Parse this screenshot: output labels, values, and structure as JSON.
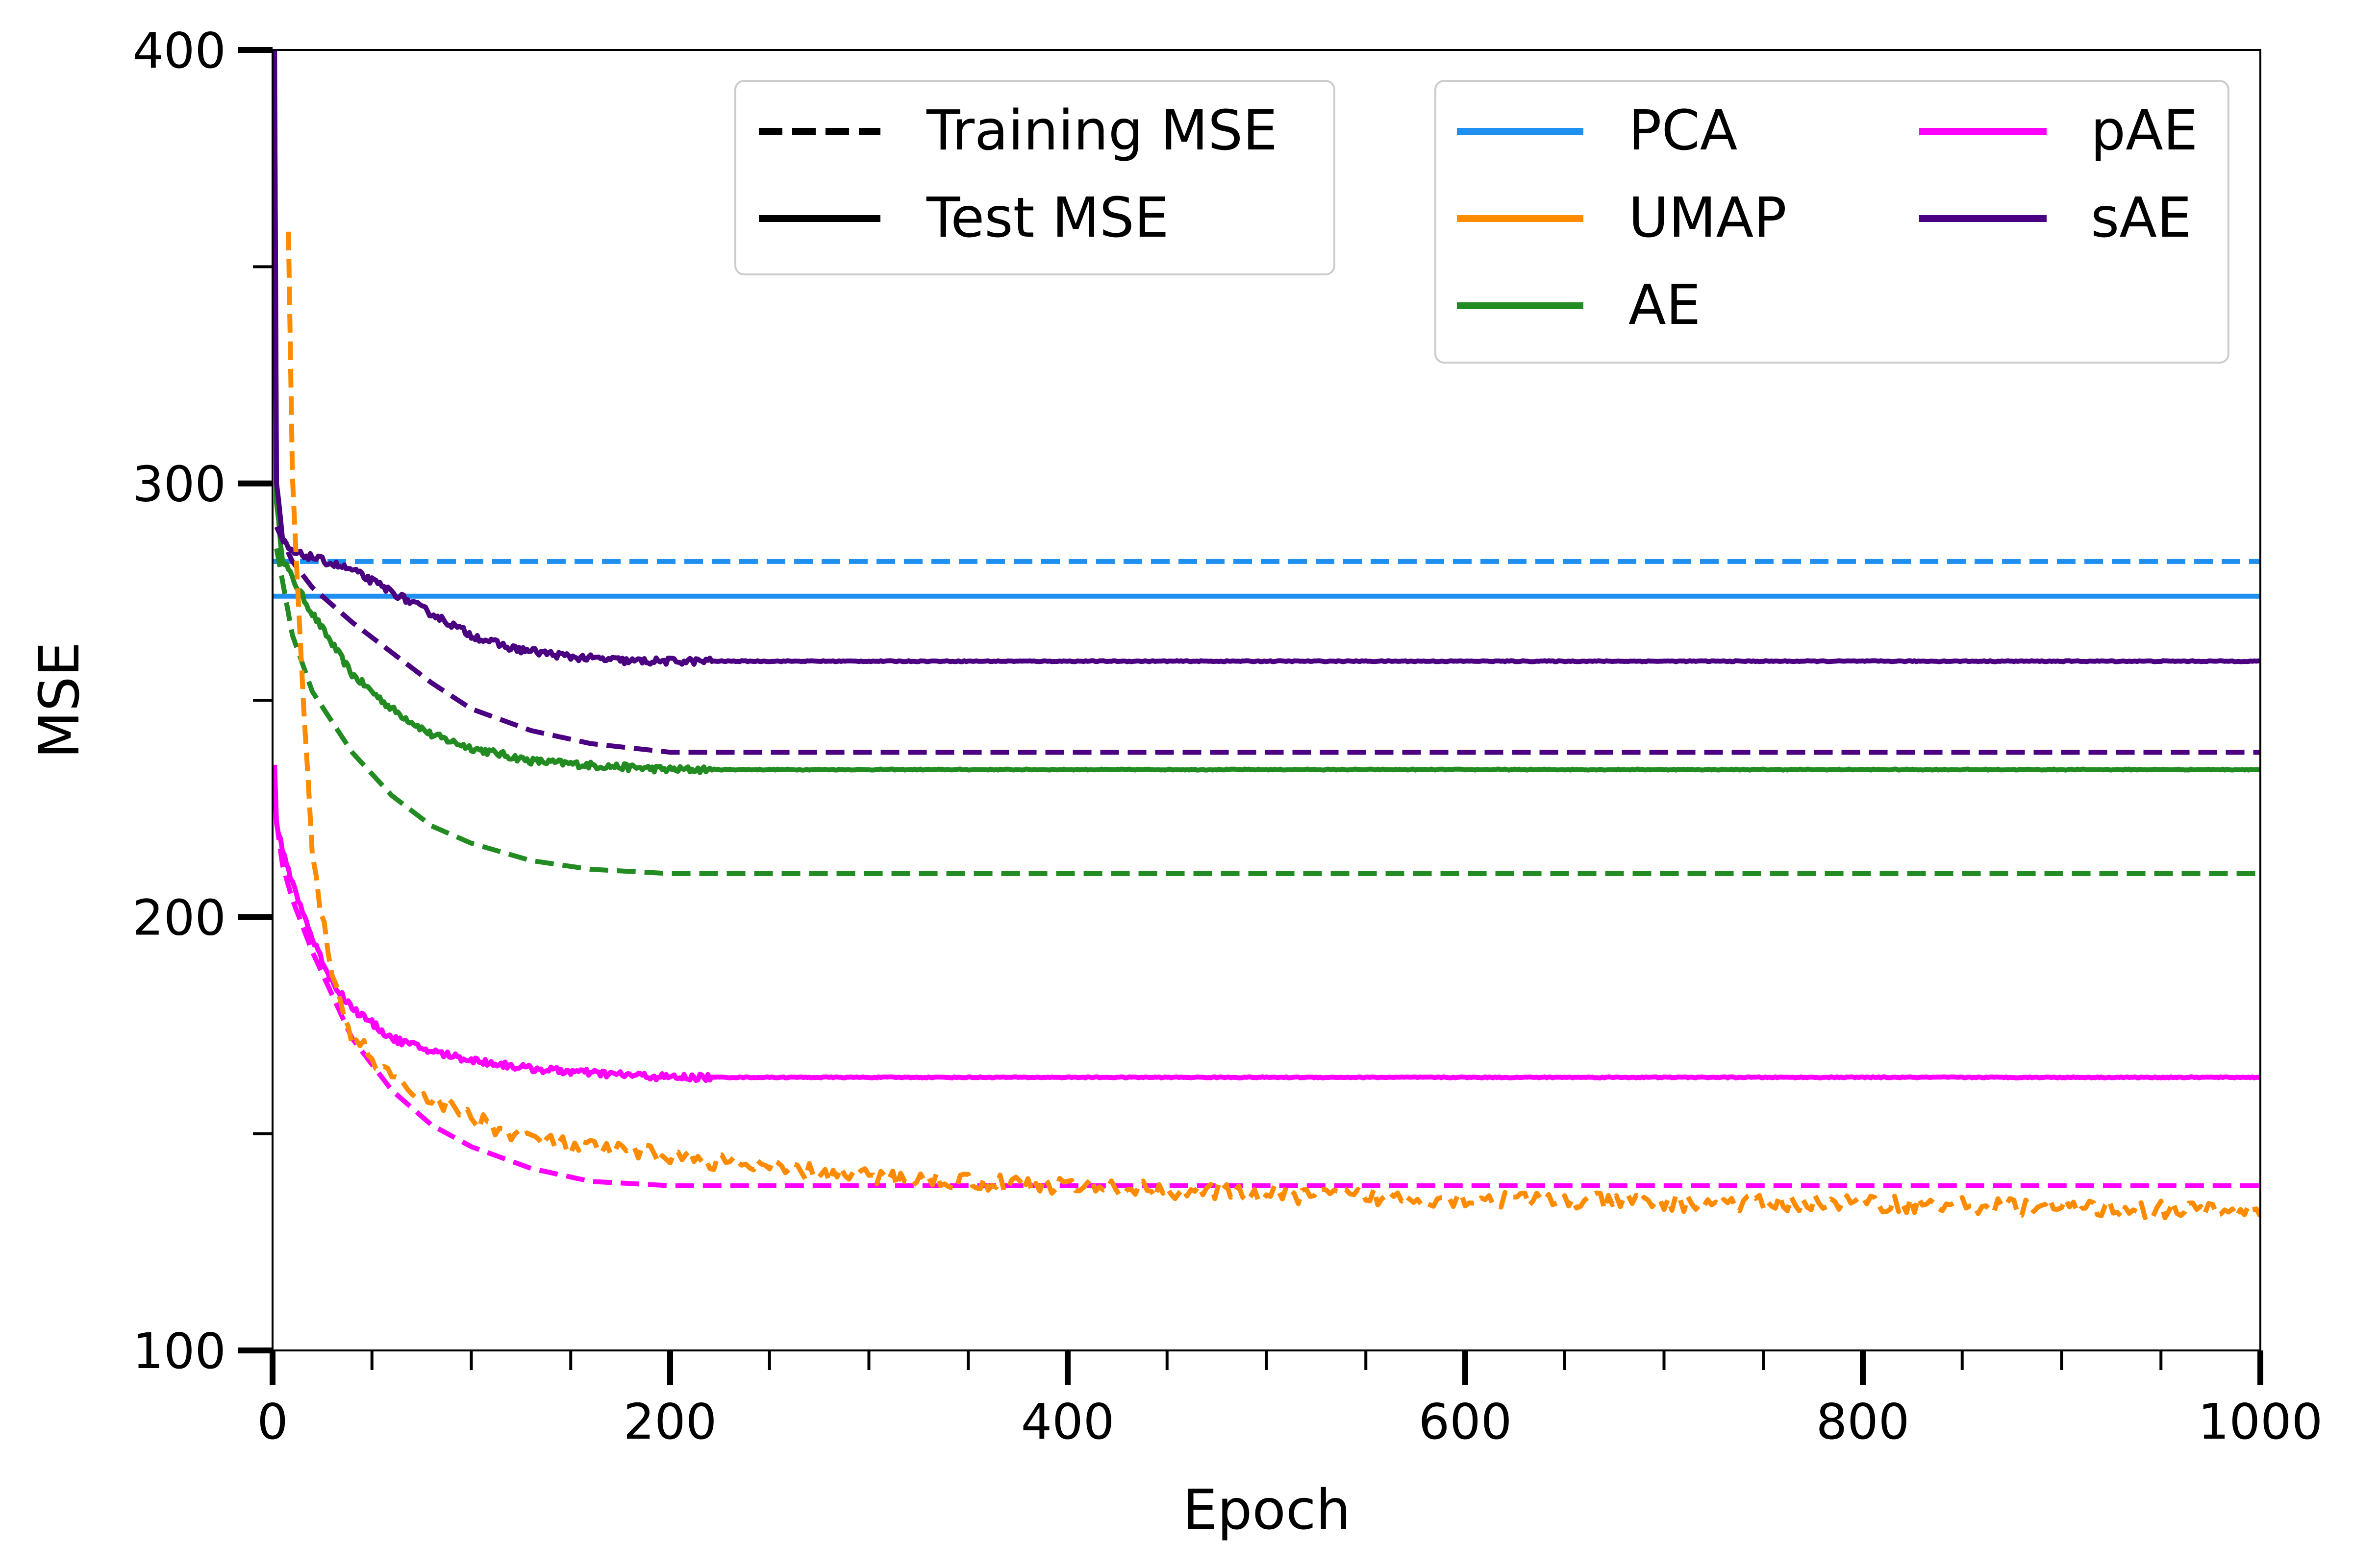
{
  "chart_data": {
    "type": "line",
    "xlabel": "Epoch",
    "ylabel": "MSE",
    "xlim": [
      0,
      1000
    ],
    "ylim": [
      100,
      400
    ],
    "x_major_ticks": [
      0,
      200,
      400,
      600,
      800,
      1000
    ],
    "x_major_tick_labels": [
      "0",
      "200",
      "400",
      "600",
      "800",
      "1000"
    ],
    "x_minor_step": 50,
    "y_major_ticks": [
      100,
      200,
      300,
      400
    ],
    "y_major_tick_labels": [
      "100",
      "200",
      "300",
      "400"
    ],
    "y_minor_step": 50,
    "grid": false,
    "style_legend": {
      "placement": "top-center",
      "entries": [
        {
          "label": "Training MSE",
          "dash": "dashed"
        },
        {
          "label": "Test MSE",
          "dash": "solid"
        }
      ]
    },
    "method_legend": {
      "placement": "top-right",
      "columns": 2,
      "entries": [
        {
          "label": "PCA",
          "color": "#1f8ff0"
        },
        {
          "label": "UMAP",
          "color": "#ff8c00"
        },
        {
          "label": "AE",
          "color": "#228b22"
        },
        {
          "label": "pAE",
          "color": "#ff00ff"
        },
        {
          "label": "sAE",
          "color": "#4b0082"
        }
      ]
    },
    "series": [
      {
        "method": "PCA",
        "kind": "train",
        "color": "#1f8ff0",
        "dashed": true,
        "x": [
          0,
          1000
        ],
        "y": [
          282,
          282
        ]
      },
      {
        "method": "PCA",
        "kind": "test",
        "color": "#1f8ff0",
        "dashed": false,
        "x": [
          0,
          1000
        ],
        "y": [
          274,
          274
        ]
      },
      {
        "method": "UMAP",
        "kind": "train",
        "color": "#ff8c00",
        "dashed": true,
        "noise": 2.0,
        "x": [
          8,
          10,
          15,
          20,
          30,
          40,
          50,
          60,
          80,
          100,
          120,
          150,
          200,
          250,
          300,
          400,
          500,
          600,
          700,
          800,
          900,
          1000
        ],
        "y": [
          357,
          300,
          255,
          215,
          185,
          172,
          168,
          162,
          158,
          154,
          150,
          147,
          145,
          142,
          140,
          138,
          136,
          135,
          134,
          134,
          133,
          132
        ]
      },
      {
        "method": "UMAP",
        "kind": "test",
        "color": "#ff8c00",
        "dashed": false,
        "x": [],
        "y": []
      },
      {
        "method": "AE",
        "kind": "train",
        "color": "#228b22",
        "dashed": true,
        "x": [
          2,
          10,
          20,
          40,
          60,
          80,
          100,
          130,
          160,
          200,
          300,
          500,
          1000
        ],
        "y": [
          285,
          265,
          252,
          238,
          228,
          221,
          217,
          213,
          211,
          210,
          210,
          210,
          210
        ]
      },
      {
        "method": "AE",
        "kind": "test",
        "color": "#228b22",
        "dashed": false,
        "noise": 0.8,
        "x": [
          1,
          2,
          5,
          10,
          20,
          40,
          60,
          80,
          100,
          130,
          160,
          200,
          300,
          1000
        ],
        "y": [
          400,
          295,
          283,
          278,
          270,
          256,
          248,
          242,
          239,
          236,
          235,
          234,
          234,
          234
        ]
      },
      {
        "method": "pAE",
        "kind": "train",
        "color": "#ff00ff",
        "dashed": true,
        "x": [
          2,
          5,
          10,
          20,
          30,
          40,
          60,
          80,
          100,
          130,
          160,
          200,
          300,
          1000
        ],
        "y": [
          222,
          212,
          204,
          192,
          182,
          172,
          160,
          152,
          147,
          142,
          139,
          138,
          138,
          138
        ]
      },
      {
        "method": "pAE",
        "kind": "test",
        "color": "#ff00ff",
        "dashed": false,
        "noise": 0.8,
        "x": [
          1,
          2,
          5,
          10,
          20,
          30,
          40,
          60,
          80,
          100,
          130,
          160,
          200,
          300,
          1000
        ],
        "y": [
          235,
          222,
          215,
          208,
          195,
          185,
          179,
          172,
          169,
          167,
          165,
          164,
          163,
          163,
          163
        ]
      },
      {
        "method": "sAE",
        "kind": "train",
        "color": "#4b0082",
        "dashed": true,
        "x": [
          2,
          10,
          20,
          40,
          60,
          80,
          100,
          130,
          160,
          200,
          300,
          500,
          1000
        ],
        "y": [
          290,
          282,
          276,
          268,
          261,
          254,
          248,
          243,
          240,
          238,
          238,
          238,
          238
        ]
      },
      {
        "method": "sAE",
        "kind": "test",
        "color": "#4b0082",
        "dashed": false,
        "noise": 0.8,
        "x": [
          1,
          2,
          5,
          10,
          20,
          40,
          60,
          80,
          100,
          120,
          150,
          180,
          200,
          300,
          1000
        ],
        "y": [
          400,
          300,
          287,
          284,
          283,
          280,
          275,
          270,
          265,
          262,
          260,
          259,
          259,
          259,
          259
        ]
      }
    ]
  }
}
